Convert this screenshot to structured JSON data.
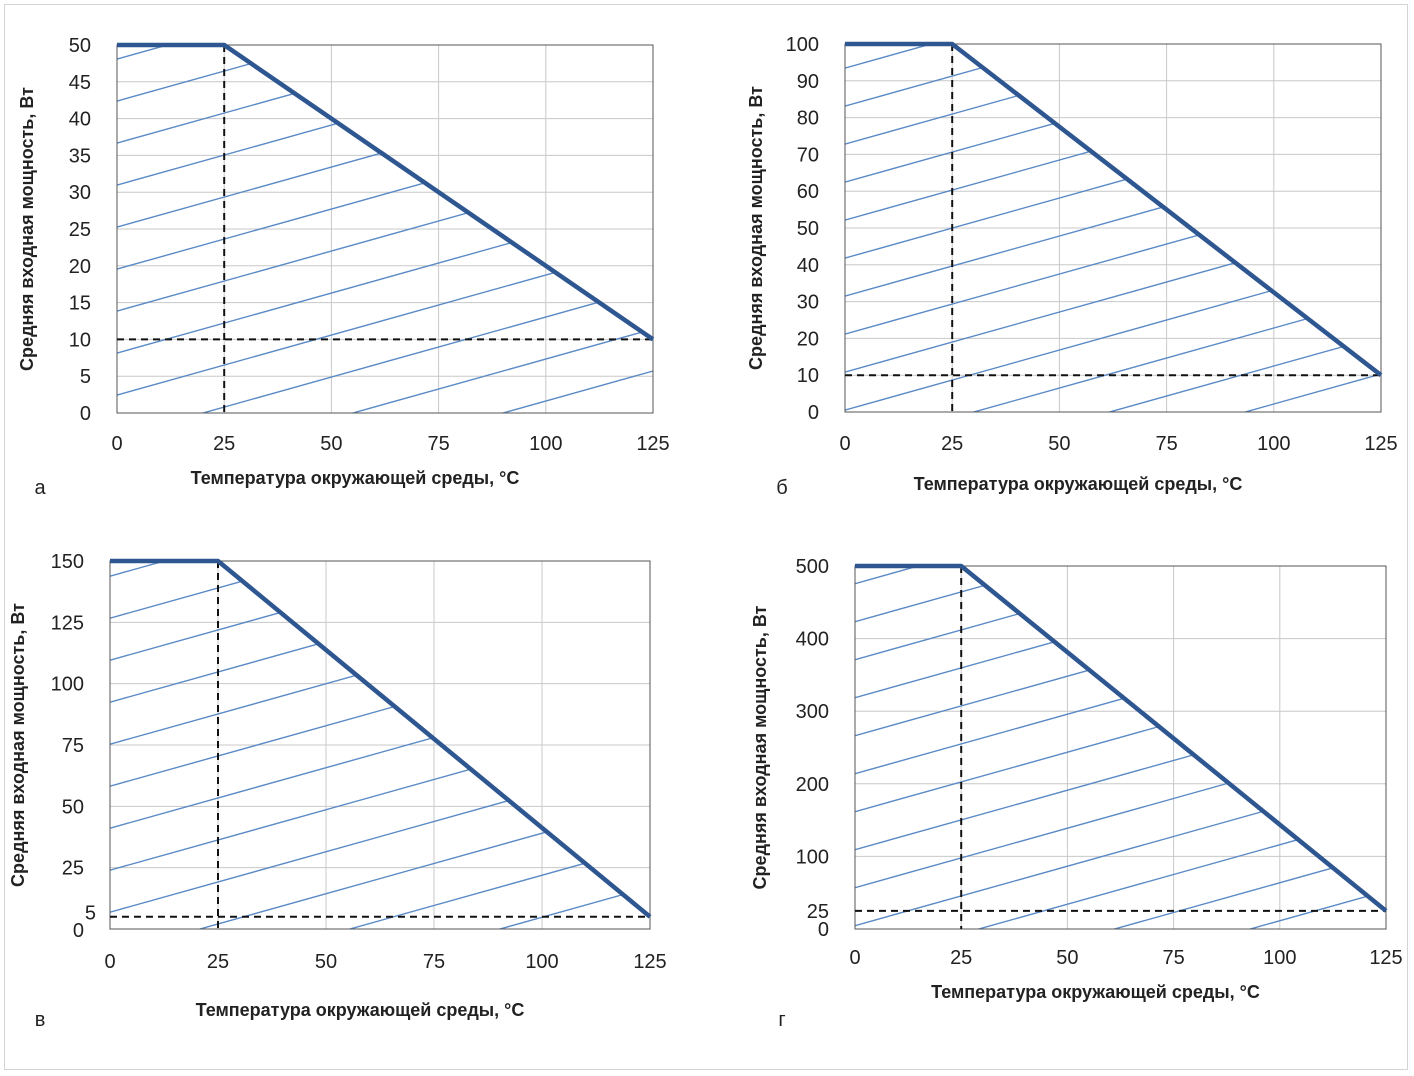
{
  "colors": {
    "grid": "#c8c8c8",
    "hatch": "#5b8ac6",
    "curve": "#2e5690",
    "reference": "#111111",
    "border": "#555555"
  },
  "chart_data": [
    {
      "type": "line",
      "panel_label": "а",
      "xlabel": "Температура окружающей среды, °C",
      "ylabel": "Средняя входная мощность, Вт",
      "xlim": [
        0,
        125
      ],
      "ylim": [
        0,
        50
      ],
      "x_ticks": [
        0,
        25,
        50,
        75,
        100,
        125
      ],
      "y_ticks": [
        0,
        5,
        10,
        15,
        20,
        25,
        30,
        35,
        40,
        45,
        50
      ],
      "series": [
        {
          "x": [
            0,
            25,
            125
          ],
          "y": [
            50,
            50,
            10
          ]
        }
      ],
      "reference_lines": {
        "vertical_x": 25,
        "horizontal_y": 10
      },
      "hatched_region": "below curve",
      "grid": true
    },
    {
      "type": "line",
      "panel_label": "б",
      "xlabel": "Температура окружающей среды, °C",
      "ylabel": "Средняя входная мощность, Вт",
      "xlim": [
        0,
        125
      ],
      "ylim": [
        0,
        100
      ],
      "x_ticks": [
        0,
        25,
        50,
        75,
        100,
        125
      ],
      "y_ticks": [
        0,
        10,
        20,
        30,
        40,
        50,
        60,
        70,
        80,
        90,
        100
      ],
      "series": [
        {
          "x": [
            0,
            25,
            125
          ],
          "y": [
            100,
            100,
            10
          ]
        }
      ],
      "reference_lines": {
        "vertical_x": 25,
        "horizontal_y": 10
      },
      "hatched_region": "below curve",
      "grid": true
    },
    {
      "type": "line",
      "panel_label": "в",
      "xlabel": "Температура окружающей среды, °C",
      "ylabel": "Средняя входная мощность, Вт",
      "xlim": [
        0,
        125
      ],
      "ylim": [
        0,
        150
      ],
      "x_ticks": [
        0,
        25,
        50,
        75,
        100,
        125
      ],
      "y_ticks": [
        0,
        5,
        25,
        50,
        75,
        100,
        125,
        150
      ],
      "series": [
        {
          "x": [
            0,
            25,
            125
          ],
          "y": [
            150,
            150,
            5
          ]
        }
      ],
      "reference_lines": {
        "vertical_x": 25,
        "horizontal_y": 5
      },
      "hatched_region": "below curve",
      "grid": true
    },
    {
      "type": "line",
      "panel_label": "г",
      "xlabel": "Температура окружающей среды, °C",
      "ylabel": "Средняя входная мощность, Вт",
      "xlim": [
        0,
        125
      ],
      "ylim": [
        0,
        500
      ],
      "x_ticks": [
        0,
        25,
        50,
        75,
        100,
        125
      ],
      "y_ticks": [
        0,
        25,
        100,
        200,
        300,
        400,
        500
      ],
      "series": [
        {
          "x": [
            0,
            25,
            125
          ],
          "y": [
            500,
            500,
            25
          ]
        }
      ],
      "reference_lines": {
        "vertical_x": 25,
        "horizontal_y": 25
      },
      "hatched_region": "below curve",
      "grid": true
    }
  ]
}
